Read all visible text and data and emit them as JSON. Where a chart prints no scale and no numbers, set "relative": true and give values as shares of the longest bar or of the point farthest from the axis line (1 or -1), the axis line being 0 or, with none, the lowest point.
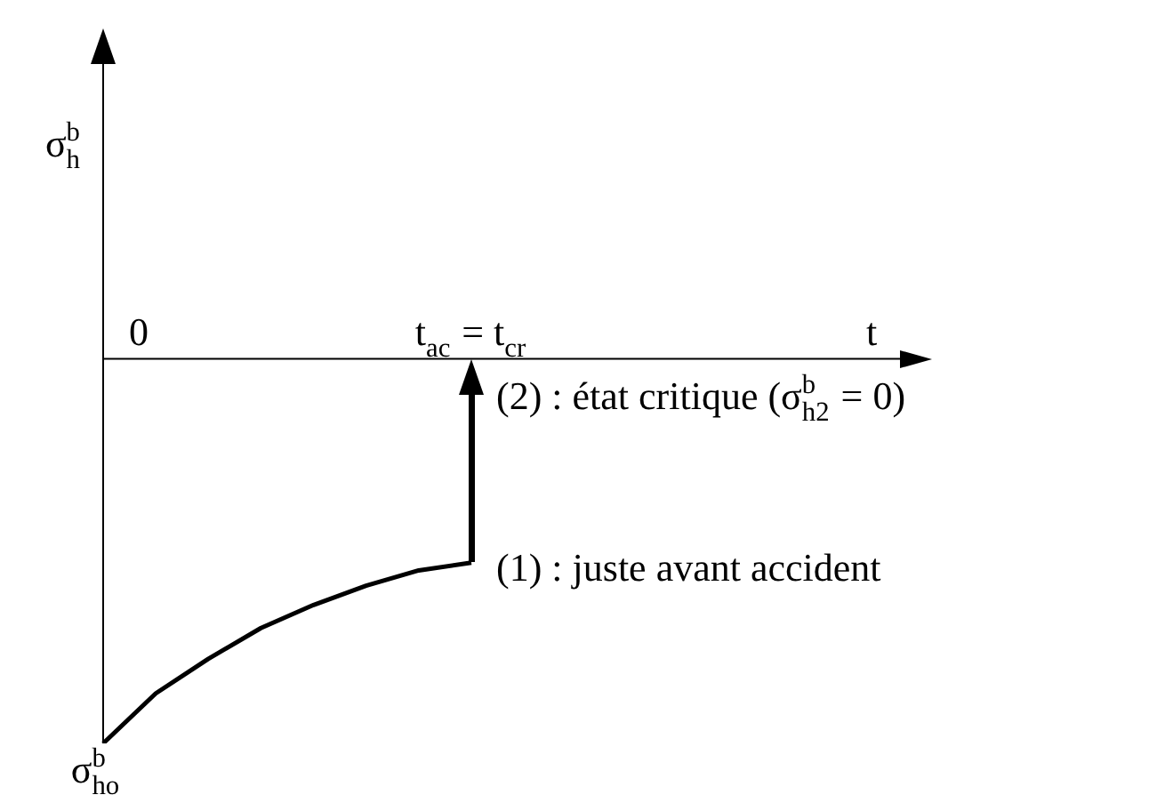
{
  "chart_data": {
    "type": "line",
    "relative": true,
    "legend": false,
    "grid": false,
    "marker": "none",
    "ylabel": "σ$_{h}$$^{b}$",
    "categories": [
      null,
      null,
      null,
      null,
      null,
      null,
      null,
      null
    ],
    "series": [
      {
        "color": "#000000",
        "values": [
          -1,
          -0.87,
          -0.78,
          -0.7,
          -0.64,
          -0.59,
          -0.55,
          -0.53
        ]
      }
    ],
    "annotations": [
      "0",
      "t$_{ac}$ = t$_{cr}$",
      "t",
      "σ$_{ho}$$^{b}$",
      "(1) : juste avant accident",
      "(2) : état critique (σ$_{h2}$$^{b}$ = 0)"
    ]
  }
}
